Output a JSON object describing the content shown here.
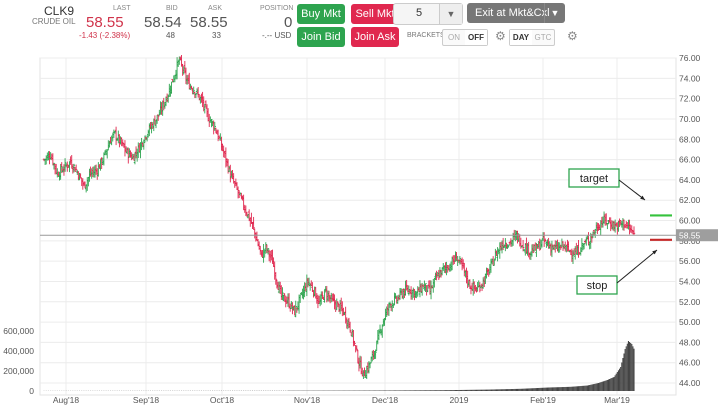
{
  "quote": {
    "symbol": "CLK9",
    "subtitle": "CRUDE OIL",
    "last_label": "LAST",
    "last_value": "58.55",
    "change": "-1.43 (-2.38%)",
    "bid_label": "BID",
    "bid_value": "58.54",
    "bid_size": "48",
    "ask_label": "ASK",
    "ask_value": "58.55",
    "ask_size": "33",
    "position_label": "POSITION",
    "position_value": "0",
    "position_pl": "-.-- USD"
  },
  "toolbar": {
    "buy_mkt": "Buy Mkt",
    "sell_mkt": "Sell Mkt",
    "join_bid": "Join Bid",
    "join_ask": "Join Ask",
    "quantity": "5",
    "exit_label": "Exit at Mkt&Cxl",
    "brackets_label": "BRACKETS",
    "on_label": "ON",
    "off_label": "OFF",
    "day_label": "DAY",
    "gtc_label": "GTC",
    "brackets_state": "OFF",
    "tif_state": "DAY"
  },
  "icons": {
    "qty_dropdown": "chevron-down-icon",
    "exit_dropdown": "chevron-down-icon",
    "bracket_settings": "gear-icon",
    "tif_settings": "gear-icon"
  },
  "colors": {
    "up_bar": "#2ea44f",
    "down_bar": "#e0284f",
    "target_line": "#34c23c",
    "stop_line": "#c62828",
    "volume": "#444444"
  },
  "chart_data": {
    "type": "ohlc",
    "price_axis": {
      "min": 44,
      "max": 76,
      "ticks": [
        "76.00",
        "74.00",
        "72.00",
        "70.00",
        "68.00",
        "66.00",
        "64.00",
        "62.00",
        "60.00",
        "58.00",
        "56.00",
        "54.00",
        "52.00",
        "50.00",
        "48.00",
        "46.00",
        "44.00"
      ]
    },
    "volume_axis": {
      "min": 0,
      "max": 600000,
      "ticks": [
        "600,000",
        "400,000",
        "200,000",
        "0"
      ]
    },
    "x_labels": [
      "Aug'18",
      "Sep'18",
      "Oct'18",
      "Nov'18",
      "Dec'18",
      "2019",
      "Feb'19",
      "Mar'19"
    ],
    "last_price": 58.55,
    "last_price_label": "58.55",
    "target_price": 60.5,
    "stop_price": 58.1,
    "annotations": {
      "target": "target",
      "stop": "stop"
    },
    "close_path": [
      [
        0,
        66.0
      ],
      [
        6,
        66.5
      ],
      [
        12,
        64.6
      ],
      [
        18,
        65.2
      ],
      [
        24,
        65.8
      ],
      [
        30,
        64.8
      ],
      [
        36,
        63.4
      ],
      [
        42,
        64.6
      ],
      [
        48,
        65.0
      ],
      [
        54,
        66.2
      ],
      [
        60,
        68.0
      ],
      [
        64,
        68.5
      ],
      [
        70,
        67.5
      ],
      [
        74,
        66.8
      ],
      [
        80,
        66.2
      ],
      [
        86,
        67.2
      ],
      [
        92,
        68.5
      ],
      [
        98,
        69.5
      ],
      [
        104,
        70.5
      ],
      [
        108,
        71.5
      ],
      [
        112,
        72.5
      ],
      [
        118,
        74.5
      ],
      [
        122,
        75.8
      ],
      [
        126,
        74.6
      ],
      [
        130,
        73.5
      ],
      [
        136,
        72.8
      ],
      [
        142,
        71.8
      ],
      [
        148,
        70.2
      ],
      [
        154,
        69.2
      ],
      [
        158,
        68.0
      ],
      [
        164,
        66.0
      ],
      [
        168,
        64.5
      ],
      [
        172,
        63.5
      ],
      [
        178,
        62.0
      ],
      [
        182,
        61.0
      ],
      [
        188,
        59.5
      ],
      [
        192,
        58.0
      ],
      [
        196,
        56.5
      ],
      [
        200,
        57.3
      ],
      [
        206,
        56.0
      ],
      [
        210,
        54.0
      ],
      [
        214,
        52.5
      ],
      [
        220,
        52.0
      ],
      [
        226,
        51.0
      ],
      [
        232,
        52.5
      ],
      [
        238,
        54.0
      ],
      [
        244,
        53.0
      ],
      [
        248,
        51.8
      ],
      [
        254,
        53.0
      ],
      [
        260,
        52.0
      ],
      [
        266,
        51.5
      ],
      [
        270,
        51.0
      ],
      [
        276,
        49.5
      ],
      [
        280,
        47.8
      ],
      [
        284,
        46.0
      ],
      [
        288,
        44.8
      ],
      [
        292,
        45.5
      ],
      [
        296,
        46.5
      ],
      [
        300,
        47.8
      ],
      [
        304,
        49.5
      ],
      [
        308,
        50.8
      ],
      [
        312,
        51.8
      ],
      [
        318,
        52.2
      ],
      [
        324,
        53.0
      ],
      [
        330,
        53.2
      ],
      [
        336,
        52.8
      ],
      [
        342,
        53.6
      ],
      [
        348,
        53.0
      ],
      [
        354,
        54.4
      ],
      [
        360,
        55.2
      ],
      [
        366,
        55.6
      ],
      [
        372,
        56.4
      ],
      [
        378,
        55.2
      ],
      [
        384,
        53.6
      ],
      [
        390,
        53.2
      ],
      [
        396,
        54.0
      ],
      [
        402,
        55.2
      ],
      [
        408,
        56.8
      ],
      [
        414,
        57.8
      ],
      [
        420,
        57.8
      ],
      [
        426,
        58.5
      ],
      [
        432,
        57.6
      ],
      [
        438,
        57.0
      ],
      [
        444,
        57.2
      ],
      [
        450,
        58.0
      ],
      [
        456,
        57.5
      ],
      [
        462,
        57.2
      ],
      [
        468,
        57.5
      ],
      [
        474,
        57.0
      ],
      [
        480,
        56.8
      ],
      [
        486,
        57.6
      ],
      [
        492,
        58.2
      ],
      [
        498,
        59.2
      ],
      [
        504,
        60.0
      ],
      [
        510,
        59.8
      ],
      [
        516,
        59.4
      ],
      [
        522,
        59.8
      ],
      [
        528,
        59.2
      ],
      [
        532,
        58.55
      ]
    ],
    "volume": [
      [
        0,
        1500
      ],
      [
        40,
        1800
      ],
      [
        80,
        2000
      ],
      [
        120,
        2200
      ],
      [
        160,
        2400
      ],
      [
        200,
        2800
      ],
      [
        240,
        3200
      ],
      [
        280,
        4000
      ],
      [
        320,
        5500
      ],
      [
        360,
        8000
      ],
      [
        400,
        14000
      ],
      [
        430,
        22000
      ],
      [
        455,
        35000
      ],
      [
        475,
        42000
      ],
      [
        490,
        55000
      ],
      [
        500,
        80000
      ],
      [
        508,
        110000
      ],
      [
        514,
        140000
      ],
      [
        520,
        240000
      ],
      [
        524,
        420000
      ],
      [
        527,
        500000
      ],
      [
        530,
        470000
      ],
      [
        533,
        400000
      ],
      [
        536,
        320000
      ]
    ]
  }
}
